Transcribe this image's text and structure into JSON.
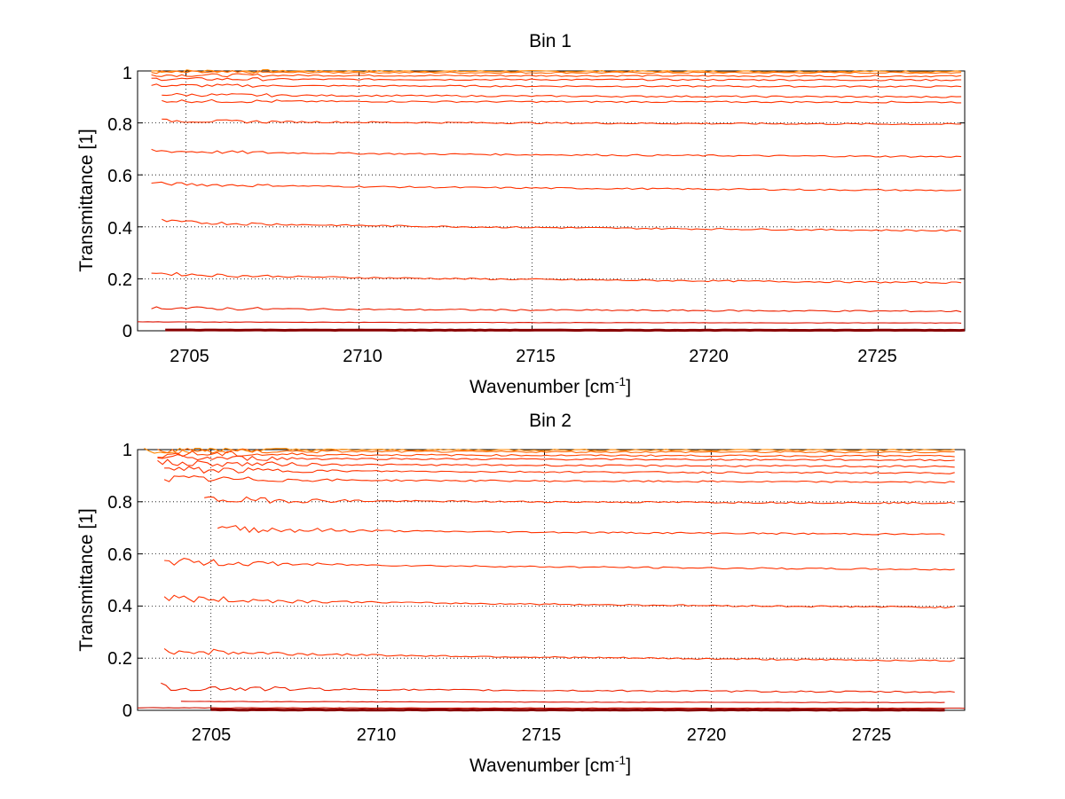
{
  "chart_data": [
    {
      "type": "line",
      "title": "Bin 1",
      "xlabel": "Wavenumber [cm",
      "xlabel_sup": "-1",
      "xlabel_end": "]",
      "ylabel": "Transmittance [1]",
      "xlim": [
        2703.6,
        2727.5
      ],
      "ylim": [
        0,
        1
      ],
      "xticks": [
        2705,
        2710,
        2715,
        2720,
        2725
      ],
      "xtick_labels": [
        "2705",
        "2710",
        "2715",
        "2720",
        "2725"
      ],
      "yticks": [
        0,
        0.2,
        0.4,
        0.6,
        0.8,
        1
      ],
      "ytick_labels": [
        "0",
        "0.2",
        "0.4",
        "0.6",
        "0.8",
        "1"
      ],
      "grid": true,
      "colors": [
        "#ff3300",
        "#ff8800",
        "#880000",
        "#22aaaa"
      ],
      "series": [
        {
          "x": [
            2704.0,
            2727.4
          ],
          "values": [
            1.0,
            0.998
          ],
          "color": "#ff8800"
        },
        {
          "x": [
            2704.0,
            2727.4
          ],
          "values": [
            0.995,
            0.993
          ],
          "color": "#ff6600"
        },
        {
          "x": [
            2704.0,
            2727.4
          ],
          "values": [
            0.985,
            0.98
          ],
          "color": "#ff4400"
        },
        {
          "x": [
            2704.0,
            2727.4
          ],
          "values": [
            0.97,
            0.965
          ],
          "color": "#ff3300"
        },
        {
          "x": [
            2704.0,
            2727.4
          ],
          "values": [
            0.945,
            0.94
          ],
          "color": "#ff3300"
        },
        {
          "x": [
            2704.3,
            2727.4
          ],
          "values": [
            0.91,
            0.9
          ],
          "color": "#ff3300"
        },
        {
          "x": [
            2704.3,
            2727.4
          ],
          "values": [
            0.885,
            0.88
          ],
          "color": "#ff3300"
        },
        {
          "x": [
            2704.3,
            2727.4
          ],
          "values": [
            0.81,
            0.795
          ],
          "color": "#ff3300"
        },
        {
          "x": [
            2704.0,
            2727.4
          ],
          "values": [
            0.695,
            0.67
          ],
          "color": "#ff3300"
        },
        {
          "x": [
            2704.0,
            2727.4
          ],
          "values": [
            0.57,
            0.54
          ],
          "color": "#ff3300"
        },
        {
          "x": [
            2704.3,
            2727.4
          ],
          "values": [
            0.425,
            0.385
          ],
          "color": "#ff3300"
        },
        {
          "x": [
            2704.0,
            2727.4
          ],
          "values": [
            0.225,
            0.185
          ],
          "color": "#ff3300"
        },
        {
          "x": [
            2704.0,
            2727.4
          ],
          "values": [
            0.09,
            0.075
          ],
          "color": "#ee2200"
        },
        {
          "x": [
            2703.6,
            2727.4
          ],
          "values": [
            0.035,
            0.03
          ],
          "color": "#dd1100"
        },
        {
          "x": [
            2704.4,
            2727.5
          ],
          "values": [
            0.003,
            0.002
          ],
          "color": "#880000"
        }
      ]
    },
    {
      "type": "line",
      "title": "Bin 2",
      "xlabel": "Wavenumber [cm",
      "xlabel_sup": "-1",
      "xlabel_end": "]",
      "ylabel": "Transmittance [1]",
      "xlim": [
        2702.8,
        2727.6
      ],
      "ylim": [
        0,
        1
      ],
      "xticks": [
        2705,
        2710,
        2715,
        2720,
        2725
      ],
      "xtick_labels": [
        "2705",
        "2710",
        "2715",
        "2720",
        "2725"
      ],
      "yticks": [
        0,
        0.2,
        0.4,
        0.6,
        0.8,
        1
      ],
      "ytick_labels": [
        "0",
        "0.2",
        "0.4",
        "0.6",
        "0.8",
        "1"
      ],
      "grid": true,
      "colors": [
        "#ff3300",
        "#ff8800",
        "#880000",
        "#22aaaa"
      ],
      "series": [
        {
          "x": [
            2703.0,
            2727.3
          ],
          "values": [
            1.0,
            0.998
          ],
          "color": "#ff8800"
        },
        {
          "x": [
            2703.4,
            2727.3
          ],
          "values": [
            0.995,
            0.99
          ],
          "color": "#ff6600"
        },
        {
          "x": [
            2703.4,
            2727.3
          ],
          "values": [
            0.985,
            0.975
          ],
          "color": "#ff4400"
        },
        {
          "x": [
            2703.4,
            2727.3
          ],
          "values": [
            0.97,
            0.96
          ],
          "color": "#ff3300"
        },
        {
          "x": [
            2703.4,
            2727.3
          ],
          "values": [
            0.95,
            0.935
          ],
          "color": "#ff3300"
        },
        {
          "x": [
            2703.6,
            2727.3
          ],
          "values": [
            0.925,
            0.91
          ],
          "color": "#ff3300"
        },
        {
          "x": [
            2703.6,
            2727.3
          ],
          "values": [
            0.89,
            0.875
          ],
          "color": "#ff3300"
        },
        {
          "x": [
            2704.8,
            2727.3
          ],
          "values": [
            0.81,
            0.795
          ],
          "color": "#ff3300"
        },
        {
          "x": [
            2705.2,
            2727.0
          ],
          "values": [
            0.7,
            0.675
          ],
          "color": "#ff3300"
        },
        {
          "x": [
            2703.6,
            2727.3
          ],
          "values": [
            0.575,
            0.54
          ],
          "color": "#ff3300"
        },
        {
          "x": [
            2703.6,
            2727.3
          ],
          "values": [
            0.435,
            0.395
          ],
          "color": "#ff3300"
        },
        {
          "x": [
            2703.6,
            2727.3
          ],
          "values": [
            0.235,
            0.19
          ],
          "color": "#ff3300"
        },
        {
          "x": [
            2703.5,
            2727.3
          ],
          "values": [
            0.09,
            0.07
          ],
          "color": "#ee2200"
        },
        {
          "x": [
            2704.1,
            2727.0
          ],
          "values": [
            0.035,
            0.03
          ],
          "color": "#dd1100"
        },
        {
          "x": [
            2702.8,
            2727.6
          ],
          "values": [
            0.01,
            0.008
          ],
          "color": "#cc1100"
        },
        {
          "x": [
            2705.0,
            2727.0
          ],
          "values": [
            0.002,
            0.001
          ],
          "color": "#880000"
        }
      ]
    }
  ]
}
